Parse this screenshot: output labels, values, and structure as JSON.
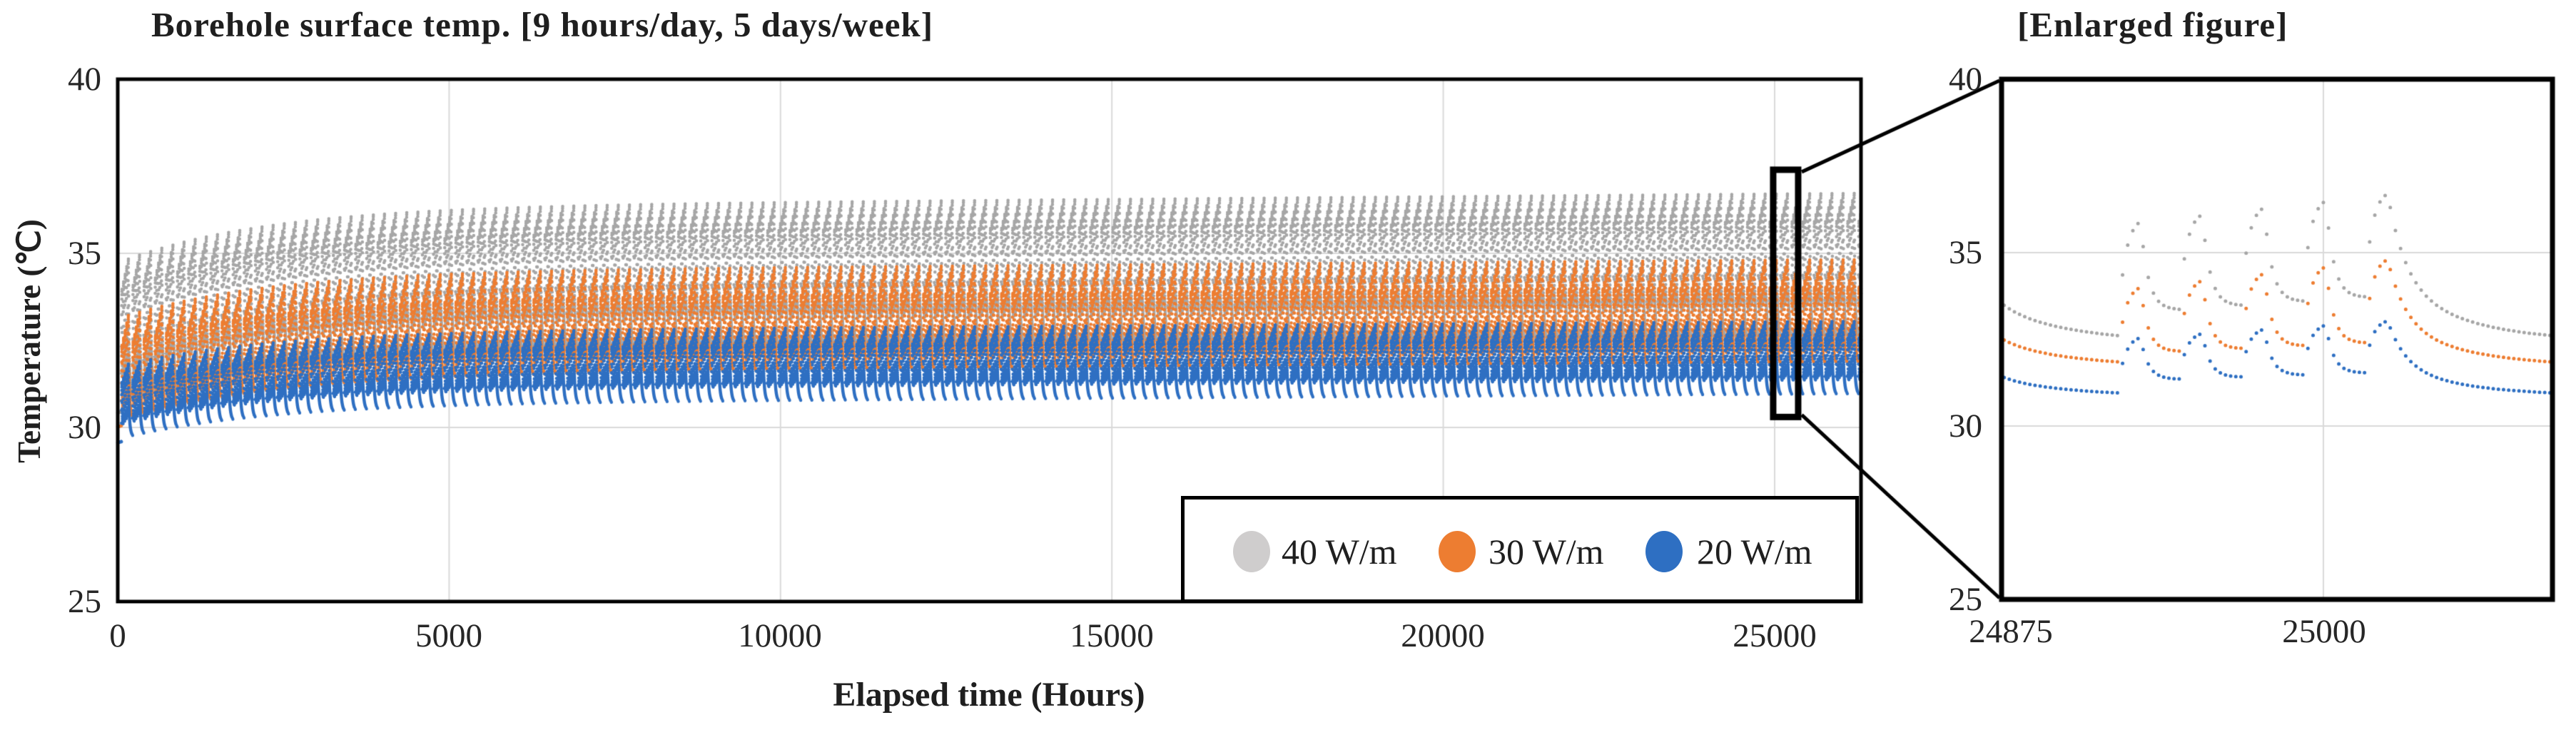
{
  "page": {
    "background": "#ffffff",
    "text_color": "#1f1f1f"
  },
  "main_chart": {
    "title": "Borehole surface temp. [9 hours/day, 5 days/week]",
    "y_axis": {
      "label": "Temperature (℃)",
      "ticks": [
        "40",
        "35",
        "30",
        "25"
      ]
    },
    "x_axis": {
      "label": "Elapsed time (Hours)",
      "ticks": [
        "0",
        "5000",
        "10000",
        "15000",
        "20000",
        "25000"
      ]
    }
  },
  "enlarged_chart": {
    "title": "[Enlarged figure]",
    "y_axis": {
      "ticks": [
        "40",
        "35",
        "30",
        "25"
      ]
    },
    "x_axis": {
      "ticks": [
        "24875",
        "25000"
      ]
    }
  },
  "legend": {
    "items": [
      {
        "label": "40 W/m",
        "swatch_color": "#cfcdcd"
      },
      {
        "label": "30 W/m",
        "swatch_color": "#ed7d31"
      },
      {
        "label": "20 W/m",
        "swatch_color": "#2e6fc2"
      }
    ]
  },
  "colors": {
    "grid": "#d9d9d9",
    "axis": "#000000",
    "annotation": "#000000",
    "background": "#ffffff"
  },
  "chart_data": {
    "type": "scatter",
    "description": "Simulated borehole surface temperature under intermittent heat injection (9 hours/day, 5 days/week) for three heat-injection rates; dots are hourly simulation output. Right panel enlarges one week around hour 25000.",
    "x_units": "hours",
    "y_units": "degC",
    "main": {
      "xlim": [
        0,
        26303
      ],
      "ylim": [
        25,
        40
      ],
      "x_gridlines": [
        5000,
        10000,
        15000,
        20000,
        25000
      ],
      "y_gridlines": [
        30,
        35
      ],
      "point_step_hours": 1
    },
    "enlarged": {
      "xlim": [
        24875,
        25089
      ],
      "ylim": [
        25,
        40
      ],
      "x_gridlines": [
        25000
      ],
      "y_gridlines": [
        30,
        35
      ],
      "point_step_hours": 2
    },
    "zoom_box": {
      "x_hours": [
        24978,
        25355
      ],
      "y_degC": [
        30.3,
        37.4
      ]
    },
    "schedule": {
      "week_hours": 168,
      "heat_start_week_hour": 57,
      "heat_hours_per_day": 9,
      "heat_days_per_week": 5,
      "rise_tau_h": 2.8,
      "night_decay_tau_h": 3.0,
      "weekend_decay": {
        "w1": 0.6,
        "tau1": 7,
        "w2": 0.4,
        "tau2": 30
      },
      "startup_tau_h": 2200,
      "anchor_hour": 25000
    },
    "series": [
      {
        "name": "40 W/m",
        "color": "#a6a6a6",
        "pattern": {
          "floor": 32.4,
          "peak_first": 35.9,
          "peak_daily_inc": 0.2,
          "trough_first": 33.35,
          "trough_daily_inc": 0.12,
          "startup_drop": 1.6,
          "drift": 0.4
        },
        "steady_levels_at_25000h": {
          "weekend_min": 32.5,
          "last_day_peak": 36.7
        }
      },
      {
        "name": "30 W/m",
        "color": "#ed7d31",
        "pattern": {
          "floor": 31.7,
          "peak_first": 34.0,
          "peak_daily_inc": 0.2,
          "trough_first": 32.15,
          "trough_daily_inc": 0.08,
          "startup_drop": 1.35,
          "drift": 0.35
        },
        "steady_levels_at_25000h": {
          "weekend_min": 31.8,
          "last_day_peak": 34.8
        }
      },
      {
        "name": "20 W/m",
        "color": "#2e6fc2",
        "pattern": {
          "floor": 30.85,
          "peak_first": 32.55,
          "peak_daily_inc": 0.12,
          "trough_first": 31.35,
          "trough_daily_inc": 0.06,
          "startup_drop": 1.0,
          "drift": 0.3
        },
        "steady_levels_at_25000h": {
          "weekend_min": 30.95,
          "last_day_peak": 33.0
        }
      }
    ]
  }
}
